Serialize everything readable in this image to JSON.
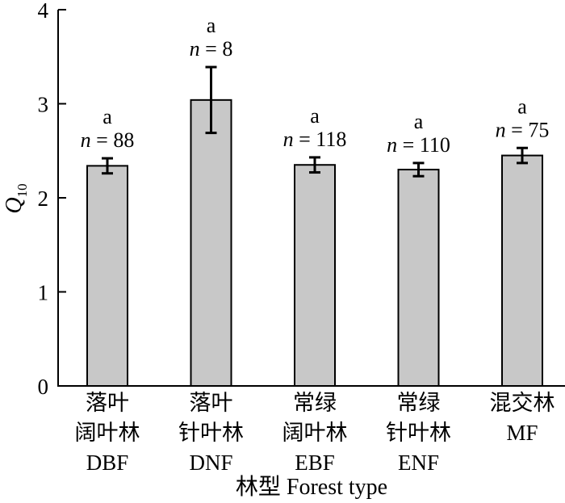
{
  "chart_data": {
    "type": "bar",
    "title": "",
    "xlabel": "林型 Forest type",
    "ylabel_main": "Q",
    "ylabel_sub": "10",
    "ylim": [
      0,
      4
    ],
    "yticks": [
      "0",
      "1",
      "2",
      "3",
      "4"
    ],
    "categories": [
      {
        "line1": "落叶",
        "line2": "阔叶林",
        "line3": "DBF"
      },
      {
        "line1": "落叶",
        "line2": "针叶林",
        "line3": "DNF"
      },
      {
        "line1": "常绿",
        "line2": "阔叶林",
        "line3": "EBF"
      },
      {
        "line1": "常绿",
        "line2": "针叶林",
        "line3": "ENF"
      },
      {
        "line1": "混交林",
        "line2": "MF",
        "line3": ""
      }
    ],
    "values": [
      2.34,
      3.04,
      2.35,
      2.3,
      2.45
    ],
    "errors": [
      0.08,
      0.35,
      0.08,
      0.07,
      0.08
    ],
    "letters": [
      "a",
      "a",
      "a",
      "a",
      "a"
    ],
    "n_prefix": "n",
    "n_values": [
      "= 88",
      "= 8",
      "= 118",
      "= 110",
      "= 75"
    ],
    "bar_color": "#c8c8c8",
    "grid": false
  }
}
